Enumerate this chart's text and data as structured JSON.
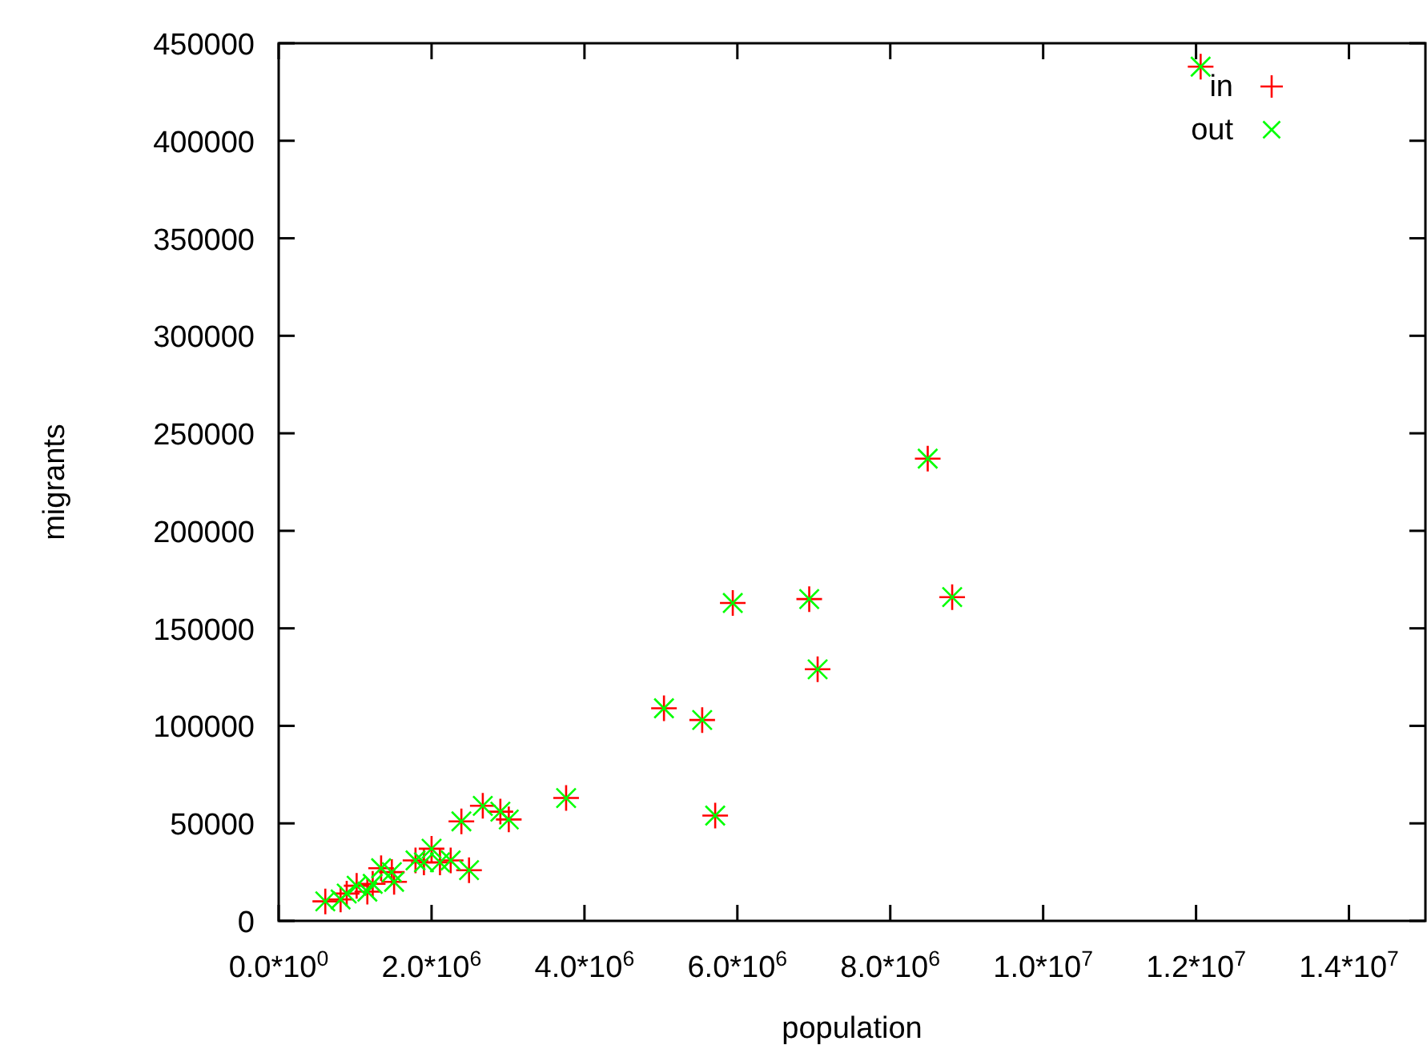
{
  "chart_data": {
    "type": "scatter",
    "xlabel": "population",
    "ylabel": "migrants",
    "xlim": [
      0,
      15000000
    ],
    "ylim": [
      0,
      450000
    ],
    "xticks": [
      {
        "value": 0,
        "label": "0.0*10$^{0}$"
      },
      {
        "value": 2000000,
        "label": "2.0*10$^{6}$"
      },
      {
        "value": 4000000,
        "label": "4.0*10$^{6}$"
      },
      {
        "value": 6000000,
        "label": "6.0*10$^{6}$"
      },
      {
        "value": 8000000,
        "label": "8.0*10$^{6}$"
      },
      {
        "value": 10000000,
        "label": "1.0*10$^{7}$"
      },
      {
        "value": 12000000,
        "label": "1.2*10$^{7}$"
      },
      {
        "value": 14000000,
        "label": "1.4*10$^{7}$"
      }
    ],
    "yticks": [
      0,
      50000,
      100000,
      150000,
      200000,
      250000,
      300000,
      350000,
      400000,
      450000
    ],
    "x": [
      610000,
      810000,
      890000,
      1020000,
      1160000,
      1230000,
      1340000,
      1480000,
      1510000,
      1790000,
      2000000,
      1900000,
      2110000,
      2250000,
      2490000,
      2390000,
      2670000,
      2900000,
      3010000,
      3760000,
      5040000,
      5540000,
      5710000,
      5940000,
      6940000,
      7050000,
      8490000,
      8810000,
      12060000
    ],
    "legend": "top right",
    "grid": false,
    "series": [
      {
        "name": "in",
        "color": "#ff0000",
        "marker": "cross",
        "values": [
          10000,
          11000,
          14000,
          18000,
          15000,
          19000,
          27000,
          25000,
          20000,
          31000,
          37000,
          30000,
          30000,
          31000,
          26000,
          51000,
          59000,
          56000,
          52000,
          63000,
          109000,
          103000,
          54000,
          163000,
          165000,
          129000,
          237000,
          166000,
          438000
        ]
      },
      {
        "name": "out",
        "color": "#00ff00",
        "marker": "cross",
        "values": [
          10000,
          11000,
          14000,
          18000,
          15000,
          19000,
          27000,
          25000,
          20000,
          31000,
          37000,
          30000,
          30000,
          31000,
          26000,
          51000,
          59000,
          56000,
          52000,
          63000,
          109000,
          103000,
          54000,
          163000,
          165000,
          129000,
          237000,
          166000,
          438000
        ]
      }
    ]
  }
}
